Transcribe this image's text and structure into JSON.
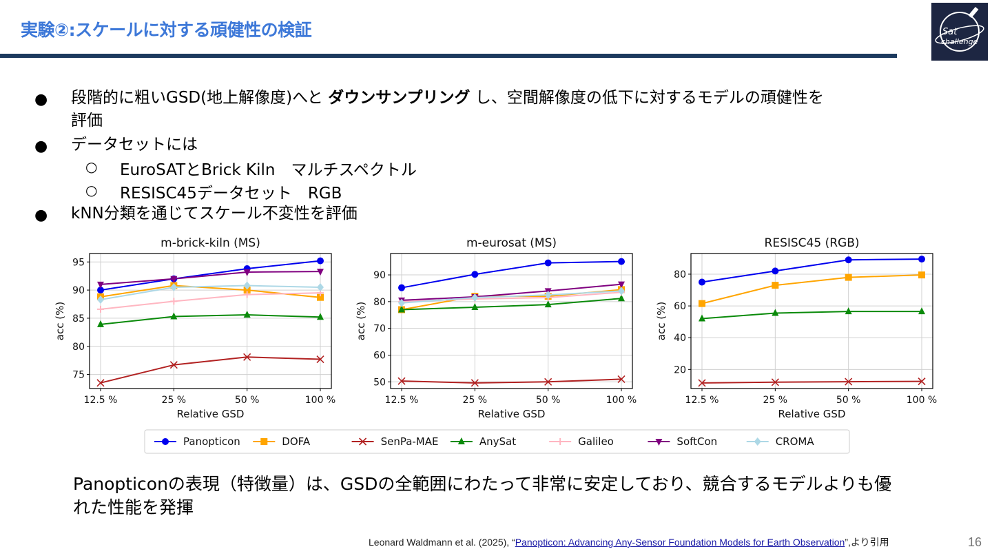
{
  "slide": {
    "title": "実験②:スケールに対する頑健性の検証",
    "logo_text_1": "Sat",
    "logo_text_2": "challenge",
    "page_number": "16"
  },
  "bullets": {
    "b1_pre": "段階的に粗いGSD(地上解像度)へと ",
    "b1_bold": "ダウンサンプリング",
    "b1_post": " し、空間解像度の低下に対するモデルの頑健性を",
    "b1_line2": "評価",
    "b2": "データセットには",
    "b2_sub1": "EuroSATとBrick Kiln　マルチスペクトル",
    "b2_sub2": "RESISC45データセット　RGB",
    "b3": "kNN分類を通じてスケール不変性を評価",
    "bullet_symbol": "●",
    "sub_symbol": "○"
  },
  "conclusion": {
    "line1": "Panopticonの表現（特徴量）は、GSDの全範囲にわたって非常に安定しており、競合するモデルよりも優",
    "line2": "れた性能を発揮"
  },
  "citation": {
    "prefix": "Leonard Waldmann et al. (2025), “",
    "link": "Panopticon: Advancing Any-Sensor Foundation Models for Earth Observation",
    "suffix": "”,より引用"
  },
  "chart_data": [
    {
      "type": "line",
      "title": "m-brick-kiln (MS)",
      "xlabel": "Relative GSD",
      "ylabel": "acc (%)",
      "categories": [
        "12.5 %",
        "25 %",
        "50 %",
        "100 %"
      ],
      "ylim": [
        72.5,
        96.5
      ],
      "yticks": [
        75,
        80,
        85,
        90,
        95
      ],
      "grid": true,
      "series": [
        {
          "name": "Panopticon",
          "values": [
            90.0,
            92.0,
            93.8,
            95.2
          ]
        },
        {
          "name": "DOFA",
          "values": [
            88.8,
            90.8,
            90.0,
            88.7
          ]
        },
        {
          "name": "SenPa-MAE",
          "values": [
            73.5,
            76.7,
            78.1,
            77.7
          ]
        },
        {
          "name": "AnySat",
          "values": [
            83.9,
            85.3,
            85.6,
            85.2
          ]
        },
        {
          "name": "Galileo",
          "values": [
            86.6,
            88.0,
            89.2,
            89.5
          ]
        },
        {
          "name": "SoftCon",
          "values": [
            91.0,
            92.0,
            93.2,
            93.3
          ]
        },
        {
          "name": "CROMA",
          "values": [
            88.3,
            90.5,
            90.8,
            90.5
          ]
        }
      ]
    },
    {
      "type": "line",
      "title": "m-eurosat (MS)",
      "xlabel": "Relative GSD",
      "ylabel": "acc (%)",
      "categories": [
        "12.5 %",
        "25 %",
        "50 %",
        "100 %"
      ],
      "ylim": [
        47.5,
        98
      ],
      "yticks": [
        50,
        60,
        70,
        80,
        90
      ],
      "grid": true,
      "series": [
        {
          "name": "Panopticon",
          "values": [
            85.2,
            90.2,
            94.5,
            95.0
          ]
        },
        {
          "name": "DOFA",
          "values": [
            77.0,
            82.0,
            82.0,
            84.5
          ]
        },
        {
          "name": "SenPa-MAE",
          "values": [
            50.3,
            49.6,
            50.0,
            51.0
          ]
        },
        {
          "name": "AnySat",
          "values": [
            77.0,
            77.9,
            78.9,
            81.2
          ]
        },
        {
          "name": "Galileo",
          "values": [
            80.0,
            81.0,
            81.5,
            83.5
          ]
        },
        {
          "name": "SoftCon",
          "values": [
            80.5,
            81.8,
            84.0,
            86.5
          ]
        },
        {
          "name": "CROMA",
          "values": [
            79.5,
            81.5,
            82.5,
            84.0
          ]
        }
      ]
    },
    {
      "type": "line",
      "title": "RESISC45 (RGB)",
      "xlabel": "Relative GSD",
      "ylabel": "acc (%)",
      "categories": [
        "12.5 %",
        "25 %",
        "50 %",
        "100 %"
      ],
      "ylim": [
        8,
        93
      ],
      "yticks": [
        20,
        40,
        60,
        80
      ],
      "grid": true,
      "series": [
        {
          "name": "Panopticon",
          "values": [
            75.0,
            82.0,
            89.0,
            89.5
          ]
        },
        {
          "name": "DOFA",
          "values": [
            61.5,
            73.0,
            78.0,
            79.5
          ]
        },
        {
          "name": "SenPa-MAE",
          "values": [
            11.5,
            12.0,
            12.3,
            12.5
          ]
        },
        {
          "name": "AnySat",
          "values": [
            52.0,
            55.5,
            56.5,
            56.5
          ]
        }
      ]
    }
  ],
  "legend": {
    "placement": "bottom-center",
    "entries": [
      {
        "name": "Panopticon",
        "color": "#0000ee",
        "marker": "circle"
      },
      {
        "name": "DOFA",
        "color": "#ffa500",
        "marker": "square"
      },
      {
        "name": "SenPa-MAE",
        "color": "#b22222",
        "marker": "x"
      },
      {
        "name": "AnySat",
        "color": "#0a8a0a",
        "marker": "triangle-up"
      },
      {
        "name": "Galileo",
        "color": "#ffb6c1",
        "marker": "plus"
      },
      {
        "name": "SoftCon",
        "color": "#800080",
        "marker": "triangle-down"
      },
      {
        "name": "CROMA",
        "color": "#add8e6",
        "marker": "diamond"
      }
    ]
  }
}
